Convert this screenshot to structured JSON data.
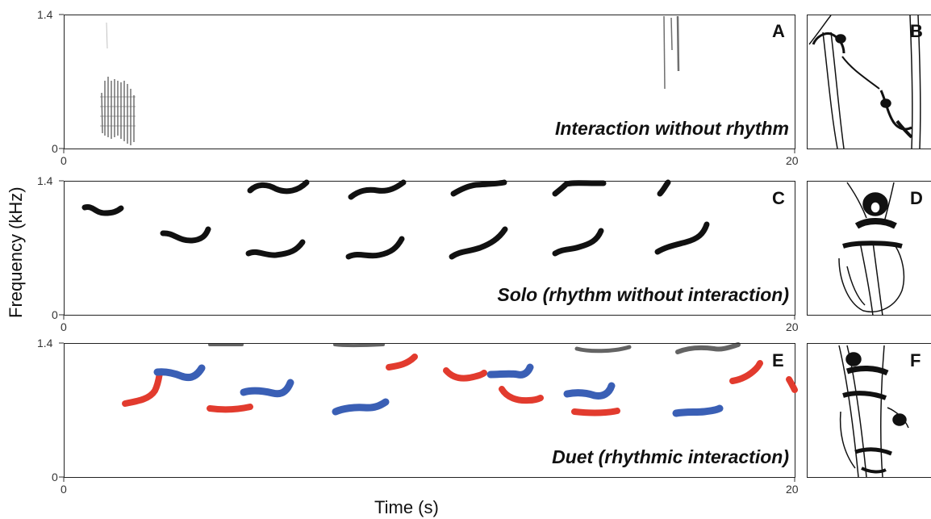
{
  "figure": {
    "y_axis_label": "Frequency (kHz)",
    "x_axis_label": "Time (s)",
    "y_ticks": [
      "1.4",
      "0"
    ],
    "x_ticks": [
      "0",
      "20"
    ],
    "colors": {
      "singer_1": "#3a5fb5",
      "singer_2": "#e23b2e",
      "ink": "#111111"
    }
  },
  "panels": [
    {
      "id": "A",
      "letter": "A",
      "caption": "Interaction without rhythm"
    },
    {
      "id": "B",
      "letter": "B",
      "illustration": "two-lemurs-reaching-icon"
    },
    {
      "id": "C",
      "letter": "C",
      "caption": "Solo (rhythm without interaction)"
    },
    {
      "id": "D",
      "letter": "D",
      "illustration": "single-lemur-icon"
    },
    {
      "id": "E",
      "letter": "E",
      "caption": "Duet (rhythmic interaction)"
    },
    {
      "id": "F",
      "letter": "F",
      "illustration": "two-lemurs-climbing-icon"
    }
  ]
}
